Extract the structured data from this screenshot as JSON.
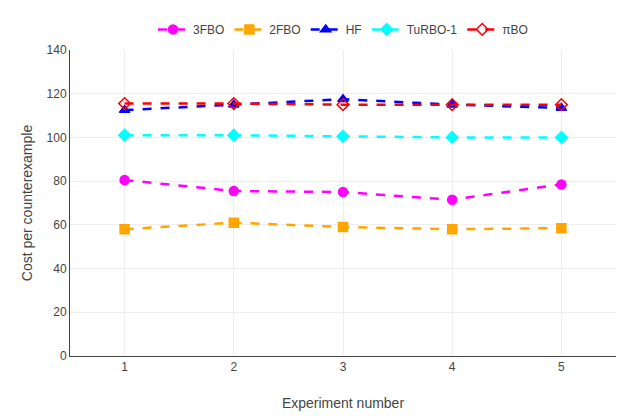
{
  "chart_data": {
    "type": "line",
    "xlabel": "Experiment number",
    "ylabel": "Cost per counterexample",
    "x": [
      1,
      2,
      3,
      4,
      5
    ],
    "series": [
      {
        "name": "3FBO",
        "color": "#FF00FF",
        "marker": "circle",
        "line_style": "dash",
        "values": [
          80.5,
          75.5,
          75.0,
          71.5,
          78.5
        ]
      },
      {
        "name": "2FBO",
        "color": "#FFA500",
        "marker": "square",
        "line_style": "dash",
        "values": [
          58.0,
          61.0,
          59.0,
          58.0,
          58.5
        ]
      },
      {
        "name": "HF",
        "color": "#0000FF",
        "marker": "triangle-up",
        "line_style": "dash",
        "values": [
          112.5,
          115.0,
          117.5,
          115.0,
          113.5
        ]
      },
      {
        "name": "TuRBO-1",
        "color": "#00FFFF",
        "marker": "diamond",
        "line_style": "dash",
        "values": [
          101.0,
          101.0,
          100.5,
          100.0,
          100.0
        ]
      },
      {
        "name": "πBO",
        "color": "#FF0000",
        "marker": "diamond-open",
        "line_style": "dash",
        "values": [
          115.5,
          115.5,
          115.0,
          115.0,
          115.0
        ]
      }
    ],
    "xlim": [
      0.5,
      5.5
    ],
    "xticks": [
      1,
      2,
      3,
      4,
      5
    ],
    "ylim": [
      0,
      140
    ],
    "yticks": [
      0,
      20,
      40,
      60,
      80,
      100,
      120,
      140
    ],
    "grid": true,
    "legend": "top"
  }
}
